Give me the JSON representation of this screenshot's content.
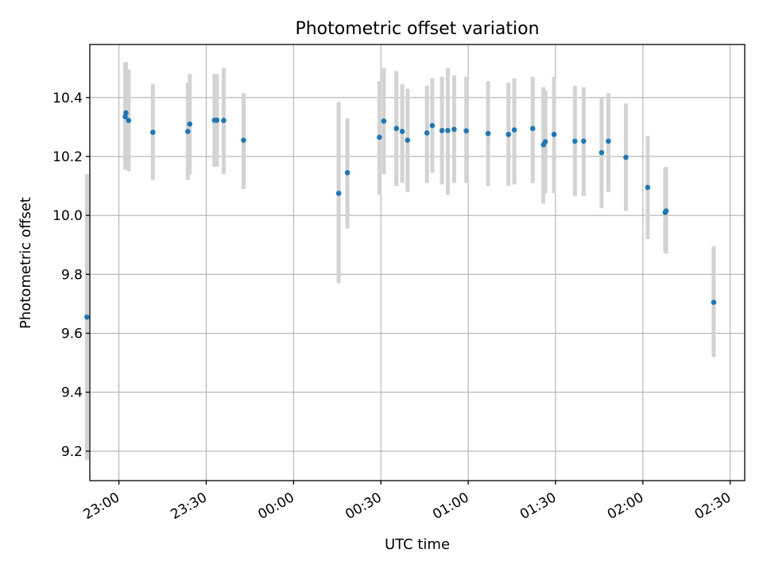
{
  "chart_data": {
    "type": "scatter",
    "title": "Photometric offset variation",
    "xlabel": "UTC time",
    "ylabel": "Photometric offset",
    "x_unit": "UTC clock time (day 1 evening → day 2 early morning)",
    "xlim": [
      "22:50",
      "02:35"
    ],
    "ylim": [
      9.1,
      10.58
    ],
    "x_ticks": [
      "23:00",
      "23:30",
      "00:00",
      "00:30",
      "01:00",
      "01:30",
      "02:00",
      "02:30"
    ],
    "y_ticks": [
      "9.2",
      "9.4",
      "9.6",
      "9.8",
      "10.0",
      "10.2",
      "10.4"
    ],
    "grid": true,
    "colors": {
      "point": "#1f77b4",
      "errorbar": "#d3d3d3"
    },
    "series": [
      {
        "points": [
          {
            "x": "22:49:00",
            "y": 9.655,
            "ylow": 9.17,
            "yhigh": 10.14
          },
          {
            "x": "23:02:10",
            "y": 10.335,
            "ylow": 10.155,
            "yhigh": 10.52
          },
          {
            "x": "23:02:25",
            "y": 10.348,
            "ylow": 10.18,
            "yhigh": 10.52
          },
          {
            "x": "23:03:20",
            "y": 10.322,
            "ylow": 10.15,
            "yhigh": 10.495
          },
          {
            "x": "23:11:40",
            "y": 10.282,
            "ylow": 10.12,
            "yhigh": 10.445
          },
          {
            "x": "23:23:40",
            "y": 10.285,
            "ylow": 10.12,
            "yhigh": 10.45
          },
          {
            "x": "23:24:20",
            "y": 10.31,
            "ylow": 10.14,
            "yhigh": 10.48
          },
          {
            "x": "23:32:50",
            "y": 10.323,
            "ylow": 10.165,
            "yhigh": 10.48
          },
          {
            "x": "23:33:40",
            "y": 10.323,
            "ylow": 10.165,
            "yhigh": 10.48
          },
          {
            "x": "23:36:00",
            "y": 10.322,
            "ylow": 10.14,
            "yhigh": 10.5
          },
          {
            "x": "23:42:50",
            "y": 10.255,
            "ylow": 10.09,
            "yhigh": 10.415
          },
          {
            "x": "00:15:30",
            "y": 10.075,
            "ylow": 9.77,
            "yhigh": 10.385
          },
          {
            "x": "00:18:30",
            "y": 10.145,
            "ylow": 9.955,
            "yhigh": 10.33
          },
          {
            "x": "00:29:30",
            "y": 10.265,
            "ylow": 10.07,
            "yhigh": 10.455
          },
          {
            "x": "00:31:00",
            "y": 10.32,
            "ylow": 10.14,
            "yhigh": 10.5
          },
          {
            "x": "00:35:20",
            "y": 10.295,
            "ylow": 10.1,
            "yhigh": 10.49
          },
          {
            "x": "00:37:20",
            "y": 10.285,
            "ylow": 10.11,
            "yhigh": 10.445
          },
          {
            "x": "00:39:10",
            "y": 10.255,
            "ylow": 10.08,
            "yhigh": 10.43
          },
          {
            "x": "00:45:50",
            "y": 10.28,
            "ylow": 10.11,
            "yhigh": 10.44
          },
          {
            "x": "00:47:40",
            "y": 10.305,
            "ylow": 10.145,
            "yhigh": 10.465
          },
          {
            "x": "00:51:00",
            "y": 10.288,
            "ylow": 10.105,
            "yhigh": 10.47
          },
          {
            "x": "00:53:00",
            "y": 10.288,
            "ylow": 10.07,
            "yhigh": 10.5
          },
          {
            "x": "00:55:10",
            "y": 10.292,
            "ylow": 10.11,
            "yhigh": 10.475
          },
          {
            "x": "00:59:20",
            "y": 10.287,
            "ylow": 10.11,
            "yhigh": 10.47
          },
          {
            "x": "01:06:50",
            "y": 10.278,
            "ylow": 10.1,
            "yhigh": 10.455
          },
          {
            "x": "01:13:50",
            "y": 10.275,
            "ylow": 10.1,
            "yhigh": 10.45
          },
          {
            "x": "01:15:50",
            "y": 10.29,
            "ylow": 10.105,
            "yhigh": 10.465
          },
          {
            "x": "01:22:10",
            "y": 10.295,
            "ylow": 10.11,
            "yhigh": 10.47
          },
          {
            "x": "01:25:50",
            "y": 10.24,
            "ylow": 10.04,
            "yhigh": 10.435
          },
          {
            "x": "01:26:30",
            "y": 10.25,
            "ylow": 10.075,
            "yhigh": 10.425
          },
          {
            "x": "01:29:30",
            "y": 10.275,
            "ylow": 10.075,
            "yhigh": 10.47
          },
          {
            "x": "01:36:40",
            "y": 10.252,
            "ylow": 10.065,
            "yhigh": 10.44
          },
          {
            "x": "01:39:40",
            "y": 10.252,
            "ylow": 10.065,
            "yhigh": 10.435
          },
          {
            "x": "01:45:50",
            "y": 10.213,
            "ylow": 10.025,
            "yhigh": 10.4
          },
          {
            "x": "01:48:10",
            "y": 10.252,
            "ylow": 10.08,
            "yhigh": 10.415
          },
          {
            "x": "01:54:10",
            "y": 10.197,
            "ylow": 10.015,
            "yhigh": 10.38
          },
          {
            "x": "02:01:40",
            "y": 10.095,
            "ylow": 9.92,
            "yhigh": 10.27
          },
          {
            "x": "02:07:40",
            "y": 10.01,
            "ylow": 9.875,
            "yhigh": 10.16
          },
          {
            "x": "02:08:00",
            "y": 10.015,
            "ylow": 9.87,
            "yhigh": 10.165
          },
          {
            "x": "02:24:20",
            "y": 9.705,
            "ylow": 9.52,
            "yhigh": 9.895
          }
        ]
      }
    ]
  }
}
